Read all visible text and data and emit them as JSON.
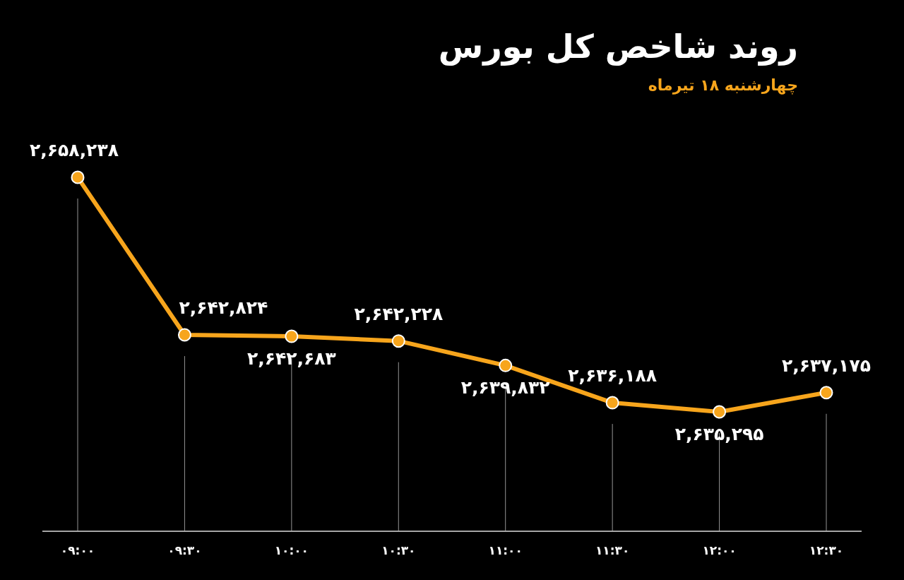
{
  "chart_data": {
    "type": "line",
    "title": "روند شاخص کل بورس",
    "subtitle": "چهارشنبه ۱۸ تیرماه",
    "categories": [
      "۰۹:۰۰",
      "۰۹:۳۰",
      "۱۰:۰۰",
      "۱۰:۳۰",
      "۱۱:۰۰",
      "۱۱:۳۰",
      "۱۲:۰۰",
      "۱۲:۳۰"
    ],
    "series": [
      {
        "color": "#f7a51c",
        "values": [
          2658238,
          2642824,
          2642683,
          2642228,
          2639832,
          2636188,
          2635295,
          2637175
        ],
        "value_labels": [
          "۲,۶۵۸,۲۳۸",
          "۲,۶۴۲,۸۲۴",
          "۲,۶۴۲,۶۸۳",
          "۲,۶۴۲,۲۲۸",
          "۲,۶۳۹,۸۳۲",
          "۲,۶۳۶,۱۸۸",
          "۲,۶۳۵,۲۹۵",
          "۲,۶۳۷,۱۷۵"
        ]
      }
    ],
    "tick_labels": "x",
    "marker": "circle",
    "line_style": "solid",
    "grid": "x"
  }
}
